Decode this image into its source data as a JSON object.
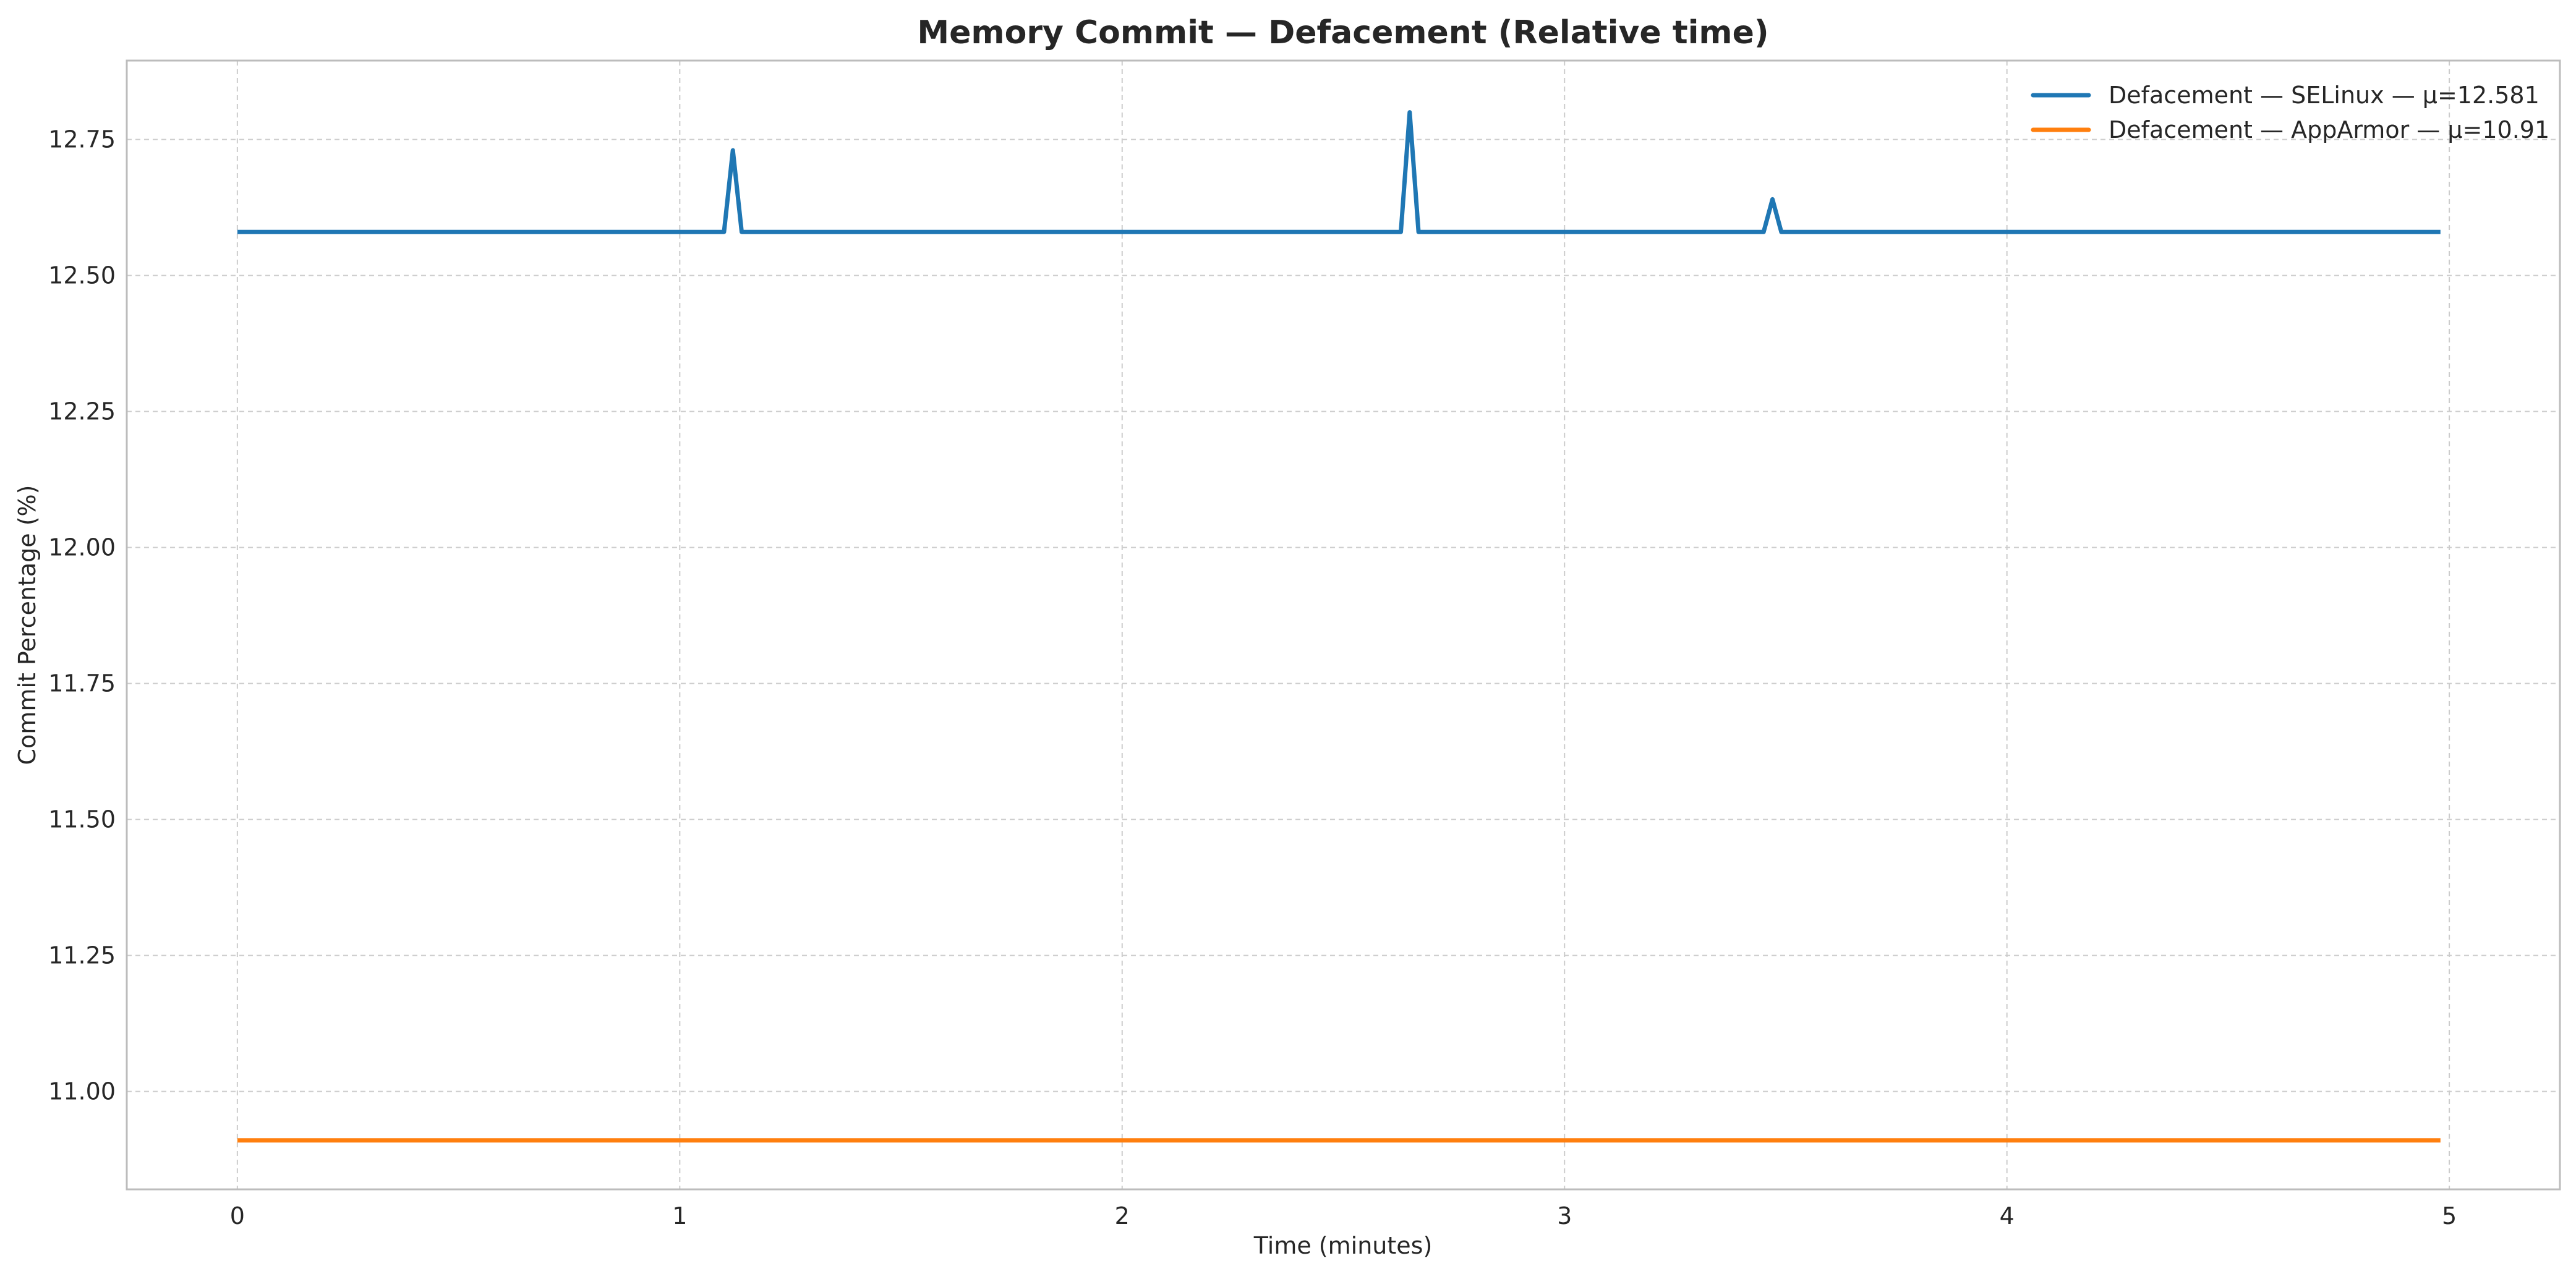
{
  "chart_data": {
    "type": "line",
    "title": "Memory Commit — Defacement (Relative time)",
    "xlabel": "Time (minutes)",
    "ylabel": "Commit Percentage (%)",
    "xlim": [
      -0.25,
      5.25
    ],
    "ylim": [
      10.82,
      12.895
    ],
    "x_ticks": [
      0,
      1,
      2,
      3,
      4,
      5
    ],
    "x_tick_labels": [
      "0",
      "1",
      "2",
      "3",
      "4",
      "5"
    ],
    "y_ticks": [
      11.0,
      11.25,
      11.5,
      11.75,
      12.0,
      12.25,
      12.5,
      12.75
    ],
    "y_tick_labels": [
      "11.00",
      "11.25",
      "11.50",
      "11.75",
      "12.00",
      "12.25",
      "12.50",
      "12.75"
    ],
    "grid": true,
    "legend_position": "top-right",
    "series": [
      {
        "name": "Defacement — SELinux — μ=12.581",
        "color": "#1f77b4",
        "x": [
          0,
          1.1,
          1.12,
          1.14,
          2.63,
          2.65,
          2.67,
          3.45,
          3.47,
          3.49,
          4.98
        ],
        "y": [
          12.58,
          12.58,
          12.73,
          12.58,
          12.58,
          12.8,
          12.58,
          12.58,
          12.64,
          12.58,
          12.58
        ]
      },
      {
        "name": "Defacement — AppArmor — μ=10.91",
        "color": "#ff7f0e",
        "x": [
          0,
          4.98
        ],
        "y": [
          10.91,
          10.91
        ]
      }
    ]
  }
}
